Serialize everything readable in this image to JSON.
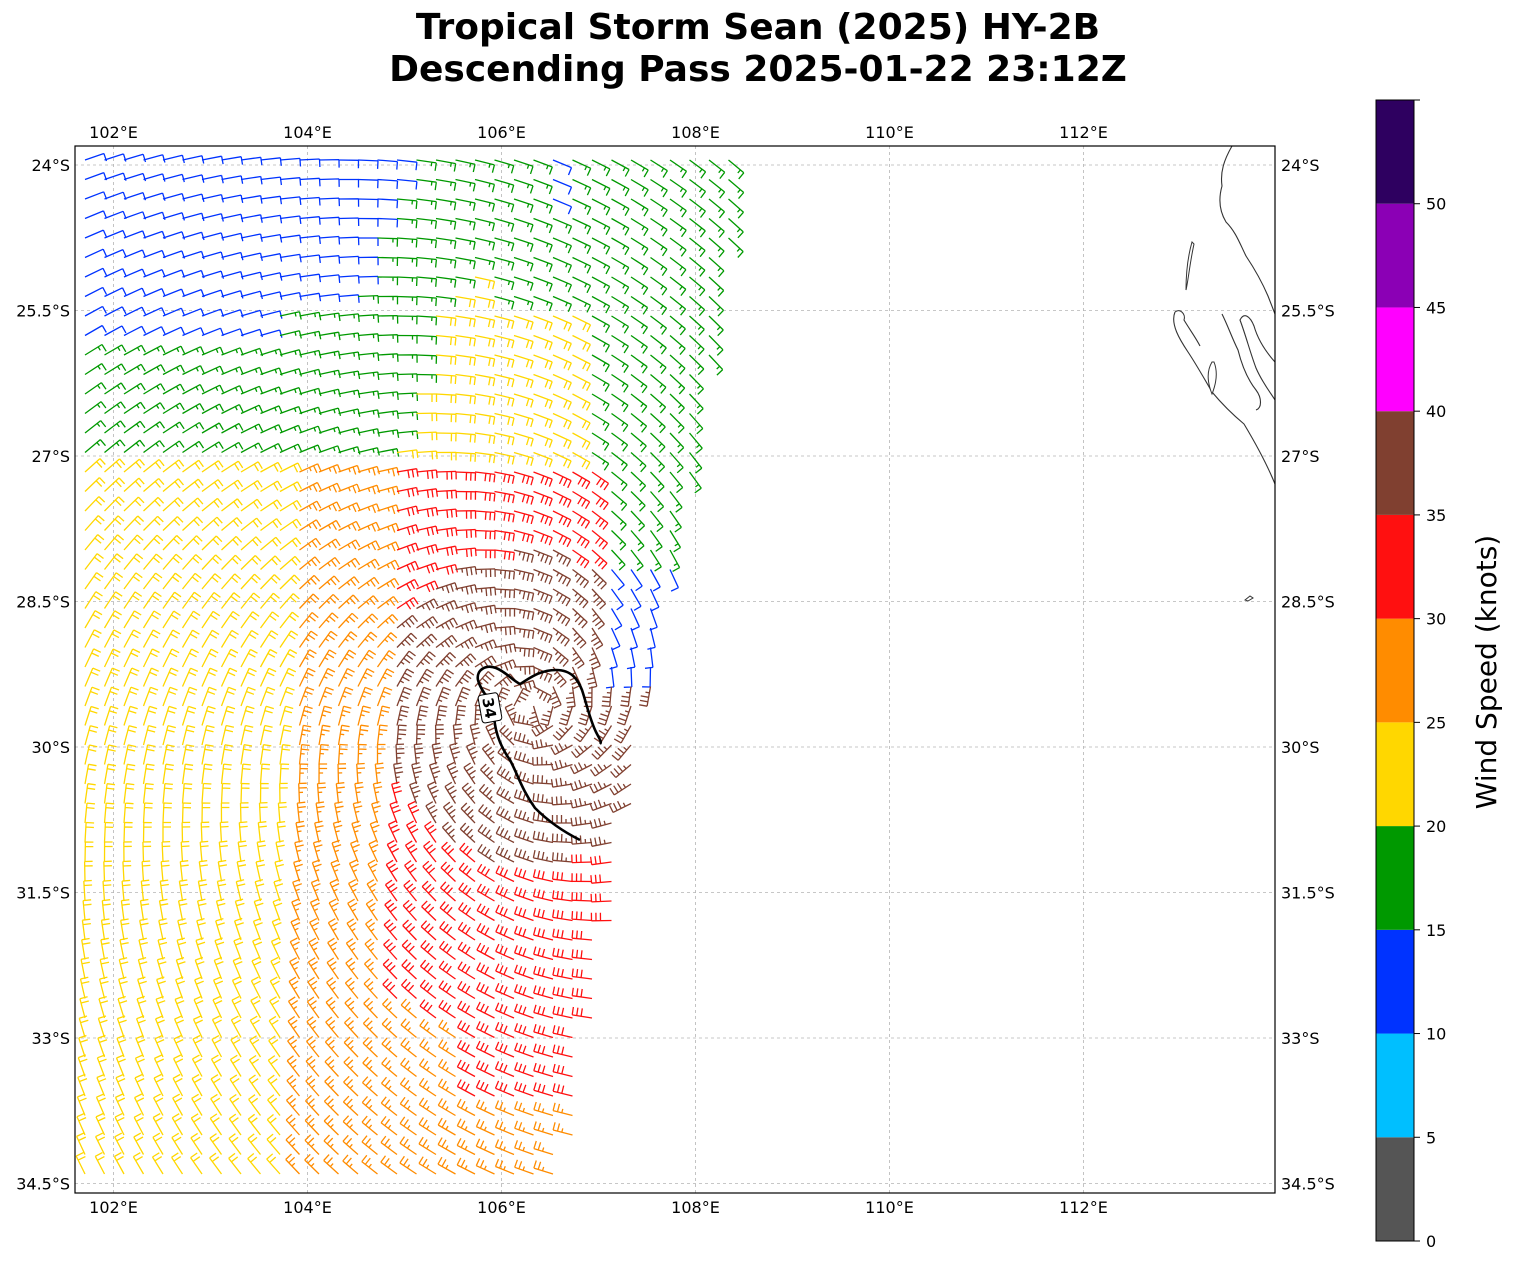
{
  "title": {
    "line1": "Tropical Storm Sean (2025) HY-2B",
    "line2": "Descending Pass 2025-01-22 23:12Z"
  },
  "map": {
    "lon_range": [
      101.6,
      114.0
    ],
    "lat_range": [
      -34.6,
      -23.8
    ],
    "lon_ticks": [
      102,
      104,
      106,
      108,
      110,
      112
    ],
    "lat_ticks": [
      -24,
      -25.5,
      -27,
      -28.5,
      -30,
      -31.5,
      -33,
      -34.5
    ],
    "lon_tick_labels": [
      "102°E",
      "104°E",
      "106°E",
      "108°E",
      "110°E",
      "112°E"
    ],
    "lat_tick_labels": [
      "24°S",
      "25.5°S",
      "27°S",
      "28.5°S",
      "30°S",
      "31.5°S",
      "33°S",
      "34.5°S"
    ],
    "gridlines": true,
    "coastline": "Western Australia coast (Shark Bay area) at upper right",
    "contour": {
      "value": 34,
      "label": "34",
      "color": "#000000"
    }
  },
  "colorbar": {
    "title": "Wind Speed (knots)",
    "bounds": [
      0,
      5,
      10,
      15,
      20,
      25,
      30,
      35,
      40,
      45,
      50,
      55
    ],
    "tick_labels": [
      "0",
      "5",
      "10",
      "15",
      "20",
      "25",
      "30",
      "35",
      "40",
      "45",
      "50"
    ],
    "colors": [
      "#555555",
      "#00bfff",
      "#0033ff",
      "#009900",
      "#ffd700",
      "#ff8c00",
      "#ff1010",
      "#804030",
      "#ff00ff",
      "#8b00b5",
      "#2e0060"
    ]
  },
  "chart_data": {
    "type": "wind_barbs",
    "units": "knots",
    "storm_center_approx": {
      "lon": 106.3,
      "lat": -29.6
    },
    "swath": {
      "lon_min": 101.6,
      "lon_max": 108.5,
      "lat_min": -34.6,
      "lat_max": -23.8
    },
    "peak_wind_knots": 38,
    "contour_knots": 34
  }
}
